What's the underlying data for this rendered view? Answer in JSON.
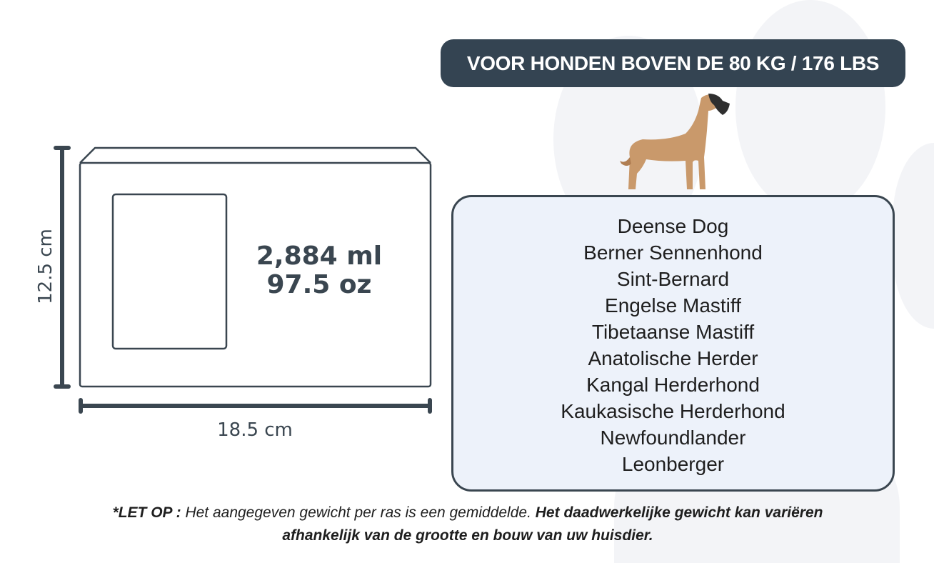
{
  "header": {
    "title": "VOOR HONDEN BOVEN DE 80 KG / 176 LBS"
  },
  "diagram": {
    "height_label": "12.5 cm",
    "width_label": "18.5 cm",
    "volume_ml": "2,884 ml",
    "volume_oz": "97.5 oz"
  },
  "breeds": [
    "Deense Dog",
    "Berner Sennenhond",
    "Sint-Bernard",
    "Engelse Mastiff",
    "Tibetaanse Mastiff",
    "Anatolische Herder",
    "Kangal Herderhond",
    "Kaukasische Herderhond",
    "Newfoundlander",
    "Leonberger"
  ],
  "footnote": {
    "label": "*LET OP :",
    "text": " Het aangegeven gewicht per ras is een gemiddelde. ",
    "emphasis": "Het daadwerkelijke gewicht kan variëren afhankelijk van de grootte en bouw van uw huisdier."
  },
  "colors": {
    "dark": "#344452",
    "box_fill": "#edf2fa",
    "dog": "#c9996b"
  },
  "icons": {
    "illustration": "great-dane-dog"
  }
}
